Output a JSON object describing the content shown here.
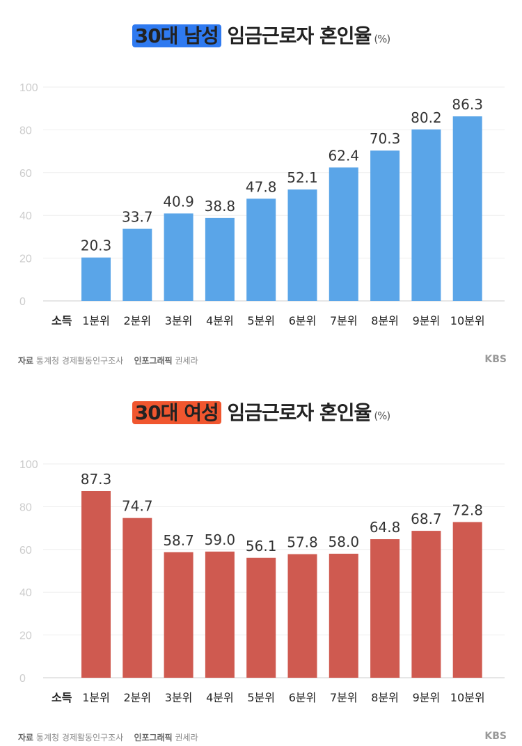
{
  "chart_data": [
    {
      "type": "bar",
      "title_highlight": "30대 남성",
      "title_rest": "임금근로자 혼인율",
      "unit": "(%)",
      "xlabel": "소득",
      "categories": [
        "1분위",
        "2분위",
        "3분위",
        "4분위",
        "5분위",
        "6분위",
        "7분위",
        "8분위",
        "9분위",
        "10분위"
      ],
      "values": [
        20.3,
        33.7,
        40.9,
        38.8,
        47.8,
        52.1,
        62.4,
        70.3,
        80.2,
        86.3
      ],
      "value_labels": [
        "20.3",
        "33.7",
        "40.9",
        "38.8",
        "47.8",
        "52.1",
        "62.4",
        "70.3",
        "80.2",
        "86.3"
      ],
      "ylim": [
        0,
        100
      ],
      "yticks": [
        0,
        20,
        40,
        60,
        80,
        100
      ],
      "grid": true,
      "bar_color": "#5aa5e8",
      "highlight_color": "#2f7af0"
    },
    {
      "type": "bar",
      "title_highlight": "30대 여성",
      "title_rest": "임금근로자 혼인율",
      "unit": "(%)",
      "xlabel": "소득",
      "categories": [
        "1분위",
        "2분위",
        "3분위",
        "4분위",
        "5분위",
        "6분위",
        "7분위",
        "8분위",
        "9분위",
        "10분위"
      ],
      "values": [
        87.3,
        74.7,
        58.7,
        59.0,
        56.1,
        57.8,
        58.0,
        64.8,
        68.7,
        72.8
      ],
      "value_labels": [
        "87.3",
        "74.7",
        "58.7",
        "59.0",
        "56.1",
        "57.8",
        "58.0",
        "64.8",
        "68.7",
        "72.8"
      ],
      "ylim": [
        0,
        100
      ],
      "yticks": [
        0,
        20,
        40,
        60,
        80,
        100
      ],
      "grid": true,
      "bar_color": "#cf5a50",
      "highlight_color": "#f0562f"
    }
  ],
  "footer": {
    "source_label": "자료",
    "source": "통계청 경제활동인구조사",
    "graphic_label": "인포그래픽",
    "graphic": "권세라",
    "logo": "KBS"
  }
}
